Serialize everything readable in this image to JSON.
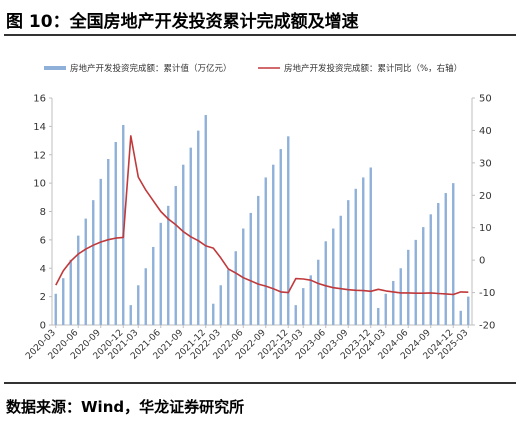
{
  "title": "图 10：全国房地产开发投资累计完成额及增速",
  "source": "数据来源：Wind，华龙证券研究所",
  "colors": {
    "bar": "#8fb0d9",
    "line": "#c0393b",
    "axis": "#bfbfbf",
    "text": "#333333"
  },
  "chart_data": {
    "type": "bar",
    "categories": [
      "2020-03",
      "2020-04",
      "2020-05",
      "2020-06",
      "2020-07",
      "2020-08",
      "2020-09",
      "2020-10",
      "2020-11",
      "2020-12",
      "2021-02",
      "2021-03",
      "2021-04",
      "2021-05",
      "2021-06",
      "2021-07",
      "2021-08",
      "2021-09",
      "2021-10",
      "2021-11",
      "2021-12",
      "2022-02",
      "2022-03",
      "2022-04",
      "2022-05",
      "2022-06",
      "2022-07",
      "2022-08",
      "2022-09",
      "2022-10",
      "2022-11",
      "2022-12",
      "2023-02",
      "2023-03",
      "2023-04",
      "2023-05",
      "2023-06",
      "2023-07",
      "2023-08",
      "2023-09",
      "2023-10",
      "2023-11",
      "2023-12",
      "2024-02",
      "2024-03",
      "2024-04",
      "2024-05",
      "2024-06",
      "2024-07",
      "2024-08",
      "2024-09",
      "2024-10",
      "2024-11",
      "2024-12",
      "2025-02",
      "2025-03"
    ],
    "tick_labels": [
      "2020-03",
      "2020-06",
      "2020-09",
      "2020-12",
      "2021-03",
      "2021-06",
      "2021-09",
      "2021-12",
      "2022-03",
      "2022-06",
      "2022-09",
      "2022-12",
      "2023-03",
      "2023-06",
      "2023-09",
      "2023-12",
      "2024-03",
      "2024-06",
      "2024-09",
      "2024-12",
      "2025-03"
    ],
    "series": [
      {
        "name": "房地产开发投资完成额：累计值（万亿元）",
        "axis": "left",
        "type": "bar",
        "values": [
          2.2,
          3.3,
          4.6,
          6.3,
          7.5,
          8.8,
          10.3,
          11.7,
          12.9,
          14.1,
          1.4,
          2.8,
          4.0,
          5.5,
          7.2,
          8.4,
          9.8,
          11.3,
          12.5,
          13.7,
          14.8,
          1.5,
          2.8,
          3.9,
          5.2,
          6.8,
          7.9,
          9.1,
          10.4,
          11.3,
          12.4,
          13.3,
          1.4,
          2.6,
          3.5,
          4.6,
          5.9,
          6.8,
          7.7,
          8.8,
          9.6,
          10.4,
          11.1,
          1.2,
          2.2,
          3.1,
          4.0,
          5.3,
          6.0,
          6.9,
          7.8,
          8.6,
          9.3,
          10.0,
          1.0,
          2.0
        ]
      },
      {
        "name": "房地产开发投资完成额：累计同比（%，右轴）",
        "axis": "right",
        "type": "line",
        "values": [
          -7.7,
          -3.3,
          -0.3,
          1.9,
          3.4,
          4.6,
          5.6,
          6.3,
          6.8,
          7.0,
          38.3,
          25.6,
          21.6,
          18.3,
          15.0,
          12.7,
          10.9,
          8.8,
          7.2,
          6.0,
          4.4,
          3.7,
          0.7,
          -2.7,
          -4.0,
          -5.4,
          -6.4,
          -7.4,
          -8.0,
          -8.8,
          -9.8,
          -10.0,
          -5.7,
          -5.8,
          -6.2,
          -7.2,
          -7.9,
          -8.5,
          -8.8,
          -9.1,
          -9.3,
          -9.4,
          -9.6,
          -9.0,
          -9.5,
          -9.8,
          -10.1,
          -10.1,
          -10.2,
          -10.2,
          -10.1,
          -10.3,
          -10.4,
          -10.6,
          -9.8,
          -9.9
        ]
      }
    ],
    "y_left": {
      "min": 0,
      "max": 16,
      "ticks": [
        0,
        2,
        4,
        6,
        8,
        10,
        12,
        14,
        16
      ]
    },
    "y_right": {
      "min": -20,
      "max": 50,
      "ticks": [
        -20,
        -10,
        0,
        10,
        20,
        30,
        40,
        50
      ]
    },
    "legend_position": "top"
  }
}
